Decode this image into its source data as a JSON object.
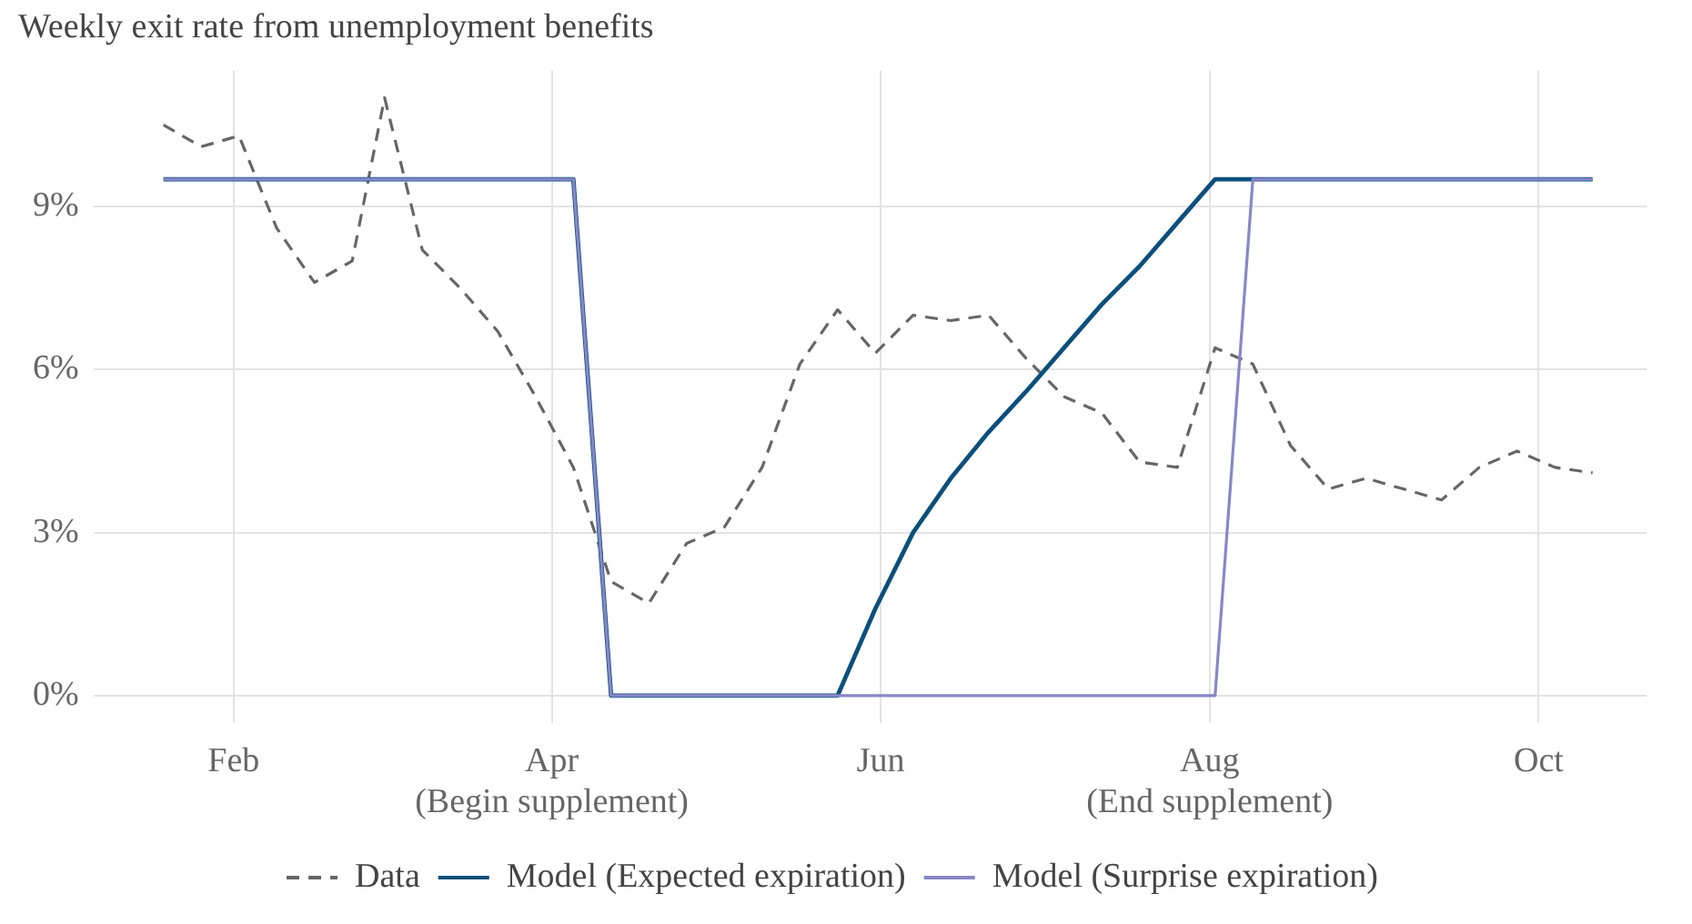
{
  "chart_data": {
    "type": "line",
    "title": "Weekly exit rate from unemployment benefits",
    "x": [
      "--01-19",
      "--01-26",
      "--02-02",
      "--02-09",
      "--02-16",
      "--02-23",
      "--03-01",
      "--03-08",
      "--03-15",
      "--03-22",
      "--03-29",
      "--04-05",
      "--04-12",
      "--04-19",
      "--04-26",
      "--05-03",
      "--05-10",
      "--05-17",
      "--05-24",
      "--05-31",
      "--06-07",
      "--06-14",
      "--06-21",
      "--06-28",
      "--07-05",
      "--07-12",
      "--07-19",
      "--07-26",
      "--08-02",
      "--08-09",
      "--08-16",
      "--08-23",
      "--08-30",
      "--09-06",
      "--09-13",
      "--09-20",
      "--09-27",
      "--10-04",
      "--10-11"
    ],
    "series": [
      {
        "name": "Data",
        "color": "#666666",
        "line_style": "dashed",
        "values": [
          10.5,
          10.1,
          10.3,
          8.6,
          7.6,
          8.0,
          11.0,
          8.2,
          7.5,
          6.7,
          5.5,
          4.2,
          2.1,
          1.7,
          2.8,
          3.1,
          4.2,
          6.1,
          7.1,
          6.3,
          7.0,
          6.9,
          7.0,
          6.2,
          5.5,
          5.2,
          4.3,
          4.2,
          6.4,
          6.1,
          4.6,
          3.8,
          4.0,
          3.8,
          3.6,
          4.2,
          4.5,
          4.2,
          4.1
        ]
      },
      {
        "name": "Model (Expected expiration)",
        "color": "#0b4f7c",
        "line_style": "solid",
        "values": [
          9.5,
          9.5,
          9.5,
          9.5,
          9.5,
          9.5,
          9.5,
          9.5,
          9.5,
          9.5,
          9.5,
          9.5,
          0,
          0,
          0,
          0,
          0,
          0,
          0,
          1.6,
          3.0,
          4.0,
          4.85,
          5.6,
          6.4,
          7.2,
          7.9,
          8.7,
          9.5,
          9.5,
          9.5,
          9.5,
          9.5,
          9.5,
          9.5,
          9.5,
          9.5,
          9.5,
          9.5
        ]
      },
      {
        "name": "Model (Surprise expiration)",
        "color": "#8787c8",
        "line_style": "solid",
        "values": [
          9.5,
          9.5,
          9.5,
          9.5,
          9.5,
          9.5,
          9.5,
          9.5,
          9.5,
          9.5,
          9.5,
          9.5,
          0,
          0,
          0,
          0,
          0,
          0,
          0,
          0,
          0,
          0,
          0,
          0,
          0,
          0,
          0,
          0,
          0,
          9.5,
          9.5,
          9.5,
          9.5,
          9.5,
          9.5,
          9.5,
          9.5,
          9.5,
          9.5
        ]
      }
    ],
    "xlim": [
      "--01-06",
      "--10-21"
    ],
    "xticks": [
      {
        "value": "--02-01",
        "label": "Feb"
      },
      {
        "value": "--04-01",
        "label": "Apr\n(Begin supplement)"
      },
      {
        "value": "--06-01",
        "label": "Jun"
      },
      {
        "value": "--08-01",
        "label": "Aug\n(End supplement)"
      },
      {
        "value": "--10-01",
        "label": "Oct"
      }
    ],
    "ylim": [
      -0.5,
      11.5
    ],
    "yticks": [
      {
        "value": 0,
        "label": "0%"
      },
      {
        "value": 3,
        "label": "3%"
      },
      {
        "value": 6,
        "label": "6%"
      },
      {
        "value": 9,
        "label": "9%"
      }
    ],
    "grid": true,
    "legend": "bottom",
    "marker": "none"
  }
}
